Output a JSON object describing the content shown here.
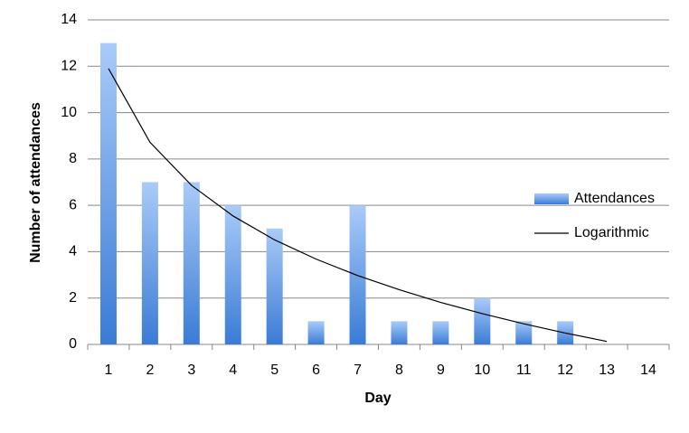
{
  "chart_data": {
    "type": "bar",
    "x_label": "Day",
    "y_label": "Number of attendances",
    "categories": [
      "1",
      "2",
      "3",
      "4",
      "5",
      "6",
      "7",
      "8",
      "9",
      "10",
      "11",
      "12",
      "13",
      "14"
    ],
    "series": [
      {
        "name": "Attendances",
        "type": "bar",
        "color": "#3a7bd5",
        "values": [
          13,
          7,
          7,
          6,
          5,
          1,
          6,
          1,
          1,
          2,
          1,
          1,
          null,
          null
        ]
      },
      {
        "name": "Logarithmic",
        "type": "line",
        "color": "#000000",
        "values": [
          11.9,
          8.72,
          6.86,
          5.54,
          4.51,
          3.68,
          2.97,
          2.36,
          1.81,
          1.33,
          0.89,
          0.49,
          0.13,
          null
        ]
      }
    ],
    "ylim": [
      0,
      14
    ],
    "yticks": [
      0,
      2,
      4,
      6,
      8,
      10,
      12,
      14
    ],
    "grid": true,
    "legend": "right"
  }
}
